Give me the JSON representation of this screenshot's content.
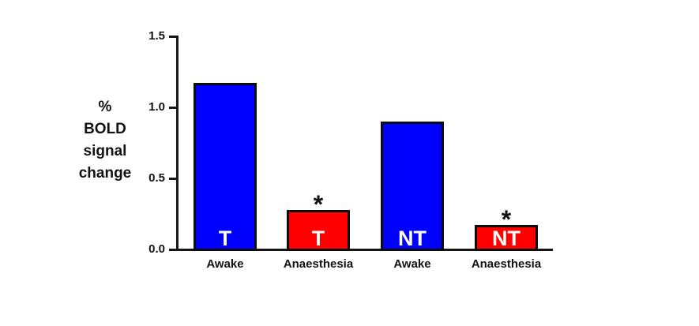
{
  "figure": {
    "y_axis_label": "%\nBOLD\nsignal\nchange"
  },
  "chart_data": {
    "type": "bar",
    "title": "",
    "ylabel": "% BOLD signal change",
    "xlabel": "",
    "ylim": [
      0,
      1.5
    ],
    "yticks": [
      "0.0",
      "0.5",
      "1.0",
      "1.5"
    ],
    "grid": false,
    "legend": false,
    "categories": [
      "Awake",
      "Anaesthesia",
      "Awake",
      "Anaesthesia"
    ],
    "bars": [
      {
        "category": "Awake",
        "group": "T",
        "value": 1.17,
        "color": "#0000FF",
        "bar_label": "T",
        "label_color": "#FFFFFF",
        "significant": false,
        "annotation": ""
      },
      {
        "category": "Anaesthesia",
        "group": "T",
        "value": 0.28,
        "color": "#FF0000",
        "bar_label": "T",
        "label_color": "#FFFFFF",
        "significant": true,
        "annotation": "*"
      },
      {
        "category": "Awake",
        "group": "NT",
        "value": 0.9,
        "color": "#0000FF",
        "bar_label": "NT",
        "label_color": "#FFFFFF",
        "significant": false,
        "annotation": ""
      },
      {
        "category": "Anaesthesia",
        "group": "NT",
        "value": 0.17,
        "color": "#FF0000",
        "bar_label": "NT",
        "label_color": "#FFFFFF",
        "significant": true,
        "annotation": "*"
      }
    ],
    "axis_color": "#161616"
  }
}
